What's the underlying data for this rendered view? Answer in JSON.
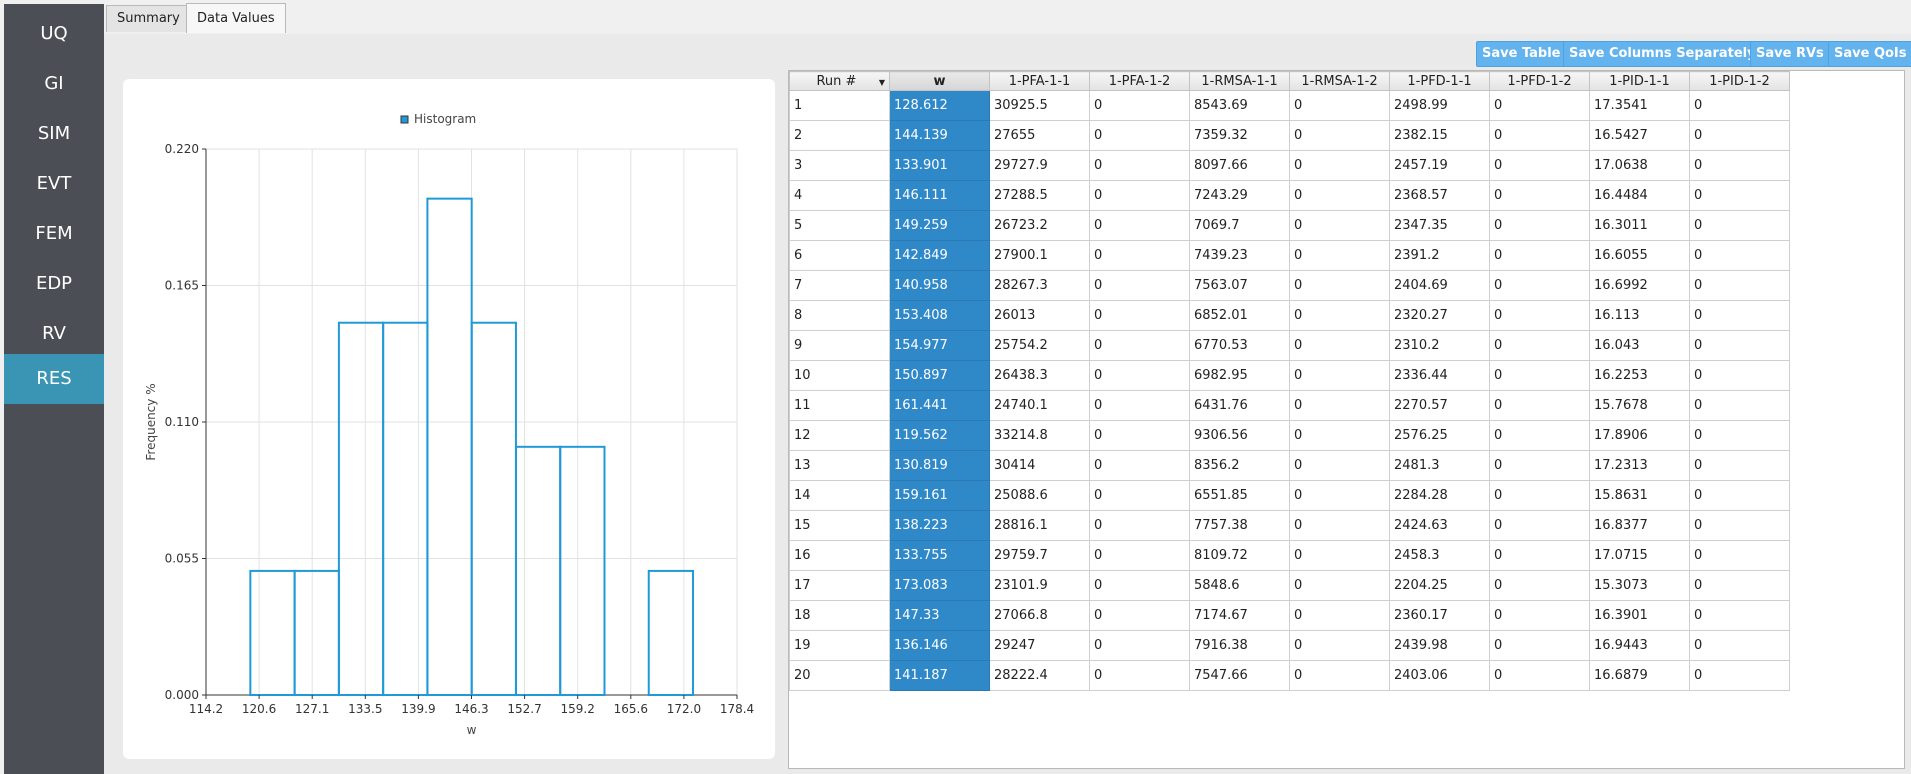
{
  "sidebar": {
    "items": [
      {
        "label": "UQ",
        "active": false
      },
      {
        "label": "GI",
        "active": false
      },
      {
        "label": "SIM",
        "active": false
      },
      {
        "label": "EVT",
        "active": false
      },
      {
        "label": "FEM",
        "active": false
      },
      {
        "label": "EDP",
        "active": false
      },
      {
        "label": "RV",
        "active": false
      },
      {
        "label": "RES",
        "active": true
      }
    ]
  },
  "tabs": [
    {
      "label": "Summary",
      "active": false
    },
    {
      "label": "Data Values",
      "active": true
    }
  ],
  "toolbar": {
    "save_table": "Save Table",
    "save_columns": "Save Columns Separately",
    "save_rvs": "Save RVs",
    "save_qois": "Save QoIs",
    "button_color": "#63b3ee"
  },
  "chart_data": {
    "type": "histogram",
    "legend": "Histogram",
    "legend_position": "top-center",
    "xlabel": "w",
    "ylabel": "Frequency %",
    "xlim": [
      114.2,
      178.4
    ],
    "ylim": [
      0.0,
      0.22
    ],
    "xticks": [
      "114.2",
      "120.6",
      "127.1",
      "133.5",
      "139.9",
      "146.3",
      "152.7",
      "159.2",
      "165.6",
      "172.0",
      "178.4"
    ],
    "yticks": [
      "0.000",
      "0.055",
      "0.110",
      "0.165",
      "0.220"
    ],
    "bins": [
      {
        "x0": 119.562,
        "x1": 124.914,
        "value": 0.05
      },
      {
        "x0": 124.914,
        "x1": 130.266,
        "value": 0.05
      },
      {
        "x0": 130.266,
        "x1": 135.618,
        "value": 0.15
      },
      {
        "x0": 135.618,
        "x1": 140.97,
        "value": 0.15
      },
      {
        "x0": 140.97,
        "x1": 146.322,
        "value": 0.2
      },
      {
        "x0": 146.322,
        "x1": 151.674,
        "value": 0.15
      },
      {
        "x0": 151.674,
        "x1": 157.026,
        "value": 0.1
      },
      {
        "x0": 157.026,
        "x1": 162.378,
        "value": 0.1
      },
      {
        "x0": 162.378,
        "x1": 167.73,
        "value": 0.0
      },
      {
        "x0": 167.73,
        "x1": 173.083,
        "value": 0.05
      }
    ],
    "grid": true,
    "series_color": "#1f9ad6"
  },
  "table": {
    "selected_column": 1,
    "columns": [
      "Run #",
      "w",
      "1-PFA-1-1",
      "1-PFA-1-2",
      "1-RMSA-1-1",
      "1-RMSA-1-2",
      "1-PFD-1-1",
      "1-PFD-1-2",
      "1-PID-1-1",
      "1-PID-1-2"
    ],
    "rows": [
      [
        "1",
        "128.612",
        "30925.5",
        "0",
        "8543.69",
        "0",
        "2498.99",
        "0",
        "17.3541",
        "0"
      ],
      [
        "2",
        "144.139",
        "27655",
        "0",
        "7359.32",
        "0",
        "2382.15",
        "0",
        "16.5427",
        "0"
      ],
      [
        "3",
        "133.901",
        "29727.9",
        "0",
        "8097.66",
        "0",
        "2457.19",
        "0",
        "17.0638",
        "0"
      ],
      [
        "4",
        "146.111",
        "27288.5",
        "0",
        "7243.29",
        "0",
        "2368.57",
        "0",
        "16.4484",
        "0"
      ],
      [
        "5",
        "149.259",
        "26723.2",
        "0",
        "7069.7",
        "0",
        "2347.35",
        "0",
        "16.3011",
        "0"
      ],
      [
        "6",
        "142.849",
        "27900.1",
        "0",
        "7439.23",
        "0",
        "2391.2",
        "0",
        "16.6055",
        "0"
      ],
      [
        "7",
        "140.958",
        "28267.3",
        "0",
        "7563.07",
        "0",
        "2404.69",
        "0",
        "16.6992",
        "0"
      ],
      [
        "8",
        "153.408",
        "26013",
        "0",
        "6852.01",
        "0",
        "2320.27",
        "0",
        "16.113",
        "0"
      ],
      [
        "9",
        "154.977",
        "25754.2",
        "0",
        "6770.53",
        "0",
        "2310.2",
        "0",
        "16.043",
        "0"
      ],
      [
        "10",
        "150.897",
        "26438.3",
        "0",
        "6982.95",
        "0",
        "2336.44",
        "0",
        "16.2253",
        "0"
      ],
      [
        "11",
        "161.441",
        "24740.1",
        "0",
        "6431.76",
        "0",
        "2270.57",
        "0",
        "15.7678",
        "0"
      ],
      [
        "12",
        "119.562",
        "33214.8",
        "0",
        "9306.56",
        "0",
        "2576.25",
        "0",
        "17.8906",
        "0"
      ],
      [
        "13",
        "130.819",
        "30414",
        "0",
        "8356.2",
        "0",
        "2481.3",
        "0",
        "17.2313",
        "0"
      ],
      [
        "14",
        "159.161",
        "25088.6",
        "0",
        "6551.85",
        "0",
        "2284.28",
        "0",
        "15.8631",
        "0"
      ],
      [
        "15",
        "138.223",
        "28816.1",
        "0",
        "7757.38",
        "0",
        "2424.63",
        "0",
        "16.8377",
        "0"
      ],
      [
        "16",
        "133.755",
        "29759.7",
        "0",
        "8109.72",
        "0",
        "2458.3",
        "0",
        "17.0715",
        "0"
      ],
      [
        "17",
        "173.083",
        "23101.9",
        "0",
        "5848.6",
        "0",
        "2204.25",
        "0",
        "15.3073",
        "0"
      ],
      [
        "18",
        "147.33",
        "27066.8",
        "0",
        "7174.67",
        "0",
        "2360.17",
        "0",
        "16.3901",
        "0"
      ],
      [
        "19",
        "136.146",
        "29247",
        "0",
        "7916.38",
        "0",
        "2439.98",
        "0",
        "16.9443",
        "0"
      ],
      [
        "20",
        "141.187",
        "28222.4",
        "0",
        "7547.66",
        "0",
        "2403.06",
        "0",
        "16.6879",
        "0"
      ]
    ]
  }
}
